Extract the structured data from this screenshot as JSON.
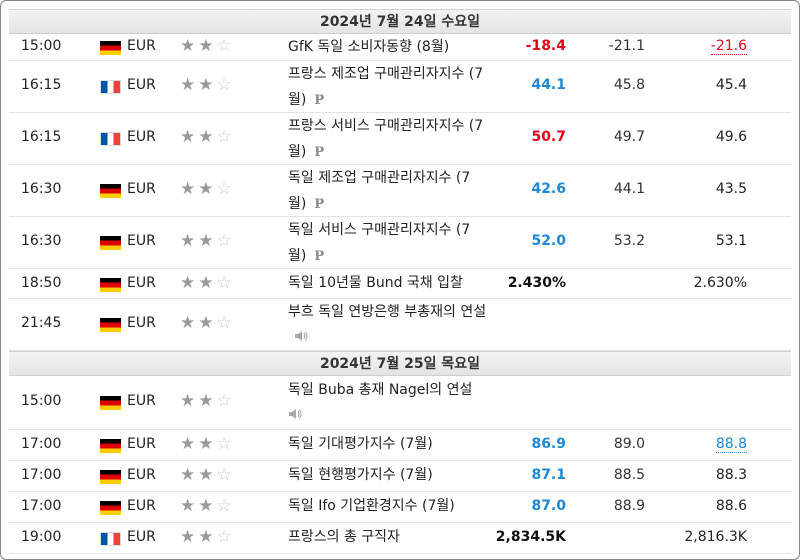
{
  "day1": {
    "title": "2024년 7월 24일 수요일"
  },
  "day2": {
    "title": "2024년 7월 25일 목요일"
  },
  "rows1": [
    {
      "time": "15:00",
      "currency": "EUR",
      "event": "GfK 독일 소비자동향 (8월)",
      "actual": "-18.4",
      "forecast": "-21.1",
      "previous": "-21.6"
    },
    {
      "time": "16:15",
      "currency": "EUR",
      "event": "프랑스 제조업 구매관리자지수 (7월)",
      "actual": "44.1",
      "forecast": "45.8",
      "previous": "45.4",
      "mark": "P"
    },
    {
      "time": "16:15",
      "currency": "EUR",
      "event": "프랑스 서비스 구매관리자지수 (7월)",
      "actual": "50.7",
      "forecast": "49.7",
      "previous": "49.6",
      "mark": "P"
    },
    {
      "time": "16:30",
      "currency": "EUR",
      "event": "독일 제조업 구매관리자지수 (7월)",
      "actual": "42.6",
      "forecast": "44.1",
      "previous": "43.5",
      "mark": "P"
    },
    {
      "time": "16:30",
      "currency": "EUR",
      "event": "독일 서비스 구매관리자지수 (7월)",
      "actual": "52.0",
      "forecast": "53.2",
      "previous": "53.1",
      "mark": "P"
    },
    {
      "time": "18:50",
      "currency": "EUR",
      "event": "독일 10년물 Bund 국채 입찰",
      "actual": "2.430%",
      "forecast": "",
      "previous": "2.630%"
    },
    {
      "time": "21:45",
      "currency": "EUR",
      "event": "부흐 독일 연방은행 부총재의 연설",
      "actual": "",
      "forecast": "",
      "previous": ""
    }
  ],
  "rows2": [
    {
      "time": "15:00",
      "currency": "EUR",
      "event": "독일 Buba 총재 Nagel의 연설",
      "actual": "",
      "forecast": "",
      "previous": ""
    },
    {
      "time": "17:00",
      "currency": "EUR",
      "event": "독일 기대평가지수 (7월)",
      "actual": "86.9",
      "forecast": "89.0",
      "previous": "88.8"
    },
    {
      "time": "17:00",
      "currency": "EUR",
      "event": "독일 현행평가지수 (7월)",
      "actual": "87.1",
      "forecast": "88.5",
      "previous": "88.3"
    },
    {
      "time": "17:00",
      "currency": "EUR",
      "event": "독일 Ifo 기업환경지수 (7월)",
      "actual": "87.0",
      "forecast": "88.9",
      "previous": "88.6"
    },
    {
      "time": "19:00",
      "currency": "EUR",
      "event": "프랑스의 총 구직자",
      "actual": "2,834.5K",
      "forecast": "",
      "previous": "2,816.3K"
    }
  ],
  "icons": {
    "importance": "star-icon",
    "speech": "speaker-icon",
    "preliminary": "p-mark-icon"
  },
  "colors": {
    "negative": "#e2001a",
    "positive": "#1e88d6",
    "header_bg": "#ececec"
  }
}
